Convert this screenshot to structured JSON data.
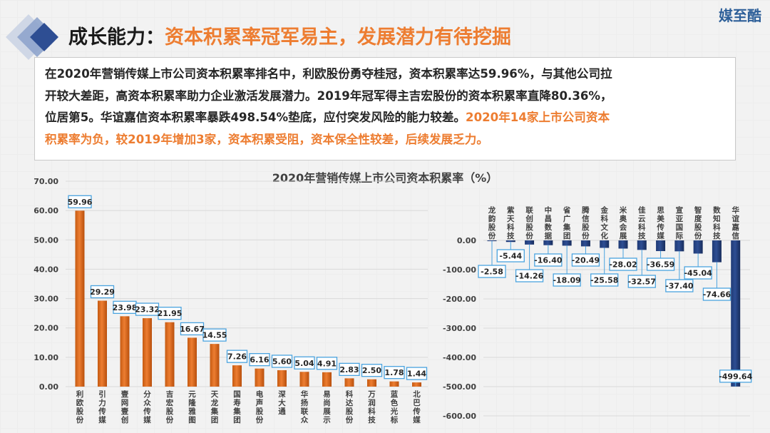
{
  "brand": "媒至酷",
  "header": {
    "title_black": "成长能力：",
    "title_orange": "资本积累率冠军易主，发展潜力有待挖掘"
  },
  "summary": {
    "lines": [
      "在2020年营销传媒上市公司资本积累率排名中，利欧股份勇夺桂冠，资本积累率达59.96%，与其他公司拉",
      "开较大差距，高资本积累率助力企业激活发展潜力。2019年冠军得主吉宏股份的资本积累率直降80.36%，",
      "位居第5。华谊嘉信资本积累率暴跌498.54%垫底，应付突发风险的能力较差。"
    ],
    "highlight_inline": "2020年14家上市公司资本",
    "highlight_line": "积累率为负，较2019年增加3家，资本积累受阻，资本保全性较差，后续发展乏力。"
  },
  "colors": {
    "positive_bar": "#ed7d31",
    "negative_bar": "#2e4e93",
    "label_border": "#4aa3df",
    "accent_orange": "#ed7d31",
    "brand_blue": "#2d5f99"
  },
  "chart_data": [
    {
      "type": "bar",
      "title": "2020年营销传媒上市公司资本积累率（%）",
      "categories": [
        "利欧股份",
        "引力传媒",
        "壹网壹创",
        "分众传媒",
        "吉宏股份",
        "元隆雅图",
        "天龙集团",
        "国寿集团",
        "电声股份",
        "深大通",
        "华扬联众",
        "易尚展示",
        "科达股份",
        "万润科技",
        "蓝色光标",
        "北巴传媒"
      ],
      "values": [
        59.96,
        29.29,
        23.98,
        23.32,
        21.95,
        16.67,
        14.55,
        7.26,
        6.16,
        5.6,
        5.04,
        4.91,
        2.83,
        2.5,
        1.78,
        1.44
      ],
      "yticks": [
        "70.00",
        "60.00",
        "50.00",
        "40.00",
        "30.00",
        "20.00",
        "10.00",
        "0.00"
      ],
      "ylim": [
        0,
        70
      ],
      "grid": true
    },
    {
      "type": "bar",
      "categories": [
        "龙韵股份",
        "紫天科技",
        "联创股份",
        "中昌数据",
        "省广集团",
        "腾信股份",
        "金科文化",
        "米奥会展",
        "佳云科技",
        "思美传媒",
        "宣亚国际",
        "智度股份",
        "数知科技",
        "华谊嘉信"
      ],
      "values": [
        -2.58,
        -5.44,
        -14.26,
        -16.4,
        -18.09,
        -20.49,
        -25.58,
        -28.02,
        -32.57,
        -36.59,
        -37.4,
        -45.04,
        -74.66,
        -499.64
      ],
      "yticks": [
        "0.00",
        "-100.00",
        "-200.00",
        "-300.00",
        "-400.00",
        "-500.00",
        "-600.00"
      ],
      "ylim": [
        -600,
        0
      ],
      "grid": true
    }
  ]
}
